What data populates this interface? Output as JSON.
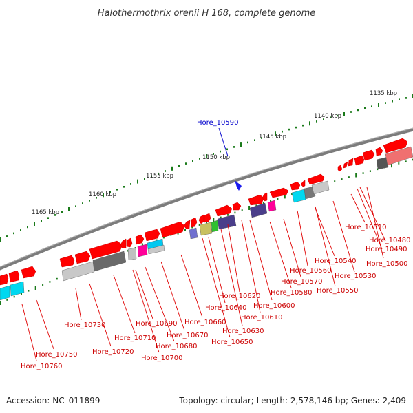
{
  "title": "Halothermothrix orenii H 168, complete genome",
  "footer": {
    "accession": "Accession: NC_011899",
    "summary": "Topology: circular; Length: 2,578,146 bp; Genes: 2,409"
  },
  "colors": {
    "backbone": "#7a7a7a",
    "ticks": "#1a7a1a",
    "gene": "#ff0000",
    "label_line": "#e00000",
    "label_text": "#cc0000",
    "highlight": "#0000cc"
  },
  "scale_labels": [
    "1135 kbp",
    "1140 kbp",
    "1145 kbp",
    "1150 kbp",
    "1155 kbp",
    "1160 kbp",
    "1165 kbp"
  ],
  "highlight_gene": "Hore_10590",
  "gene_labels": [
    "Hore_10480",
    "Hore_10490",
    "Hore_10500",
    "Hore_10510",
    "Hore_10530",
    "Hore_10540",
    "Hore_10550",
    "Hore_10560",
    "Hore_10570",
    "Hore_10580",
    "Hore_10600",
    "Hore_10610",
    "Hore_10620",
    "Hore_10630",
    "Hore_10640",
    "Hore_10650",
    "Hore_10660",
    "Hore_10670",
    "Hore_10680",
    "Hore_10690",
    "Hore_10700",
    "Hore_10710",
    "Hore_10720",
    "Hore_10730",
    "Hore_10750",
    "Hore_10760"
  ]
}
